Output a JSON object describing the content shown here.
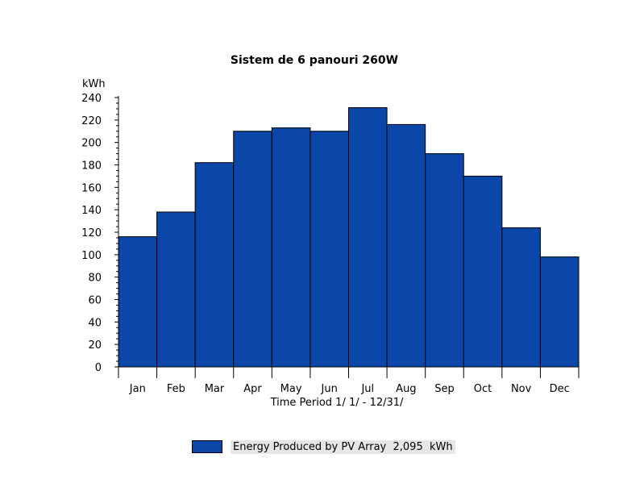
{
  "chart_data": {
    "type": "bar",
    "title": "Sistem de 6 panouri 260W",
    "ylabel": "kWh",
    "xlabel": "Time Period 1/ 1/ - 12/31/",
    "ylim": [
      0,
      240
    ],
    "yticks": [
      0,
      20,
      40,
      60,
      80,
      100,
      120,
      140,
      160,
      180,
      200,
      220,
      240
    ],
    "categories": [
      "Jan",
      "Feb",
      "Mar",
      "Apr",
      "May",
      "Jun",
      "Jul",
      "Aug",
      "Sep",
      "Oct",
      "Nov",
      "Dec"
    ],
    "series": [
      {
        "name": "Energy Produced by PV Array  2,095  kWh",
        "color": "#0a47a8",
        "values": [
          116,
          138,
          182,
          210,
          213,
          210,
          231,
          216,
          190,
          170,
          124,
          98
        ]
      }
    ],
    "grid": false,
    "legend_position": "bottom-center"
  }
}
